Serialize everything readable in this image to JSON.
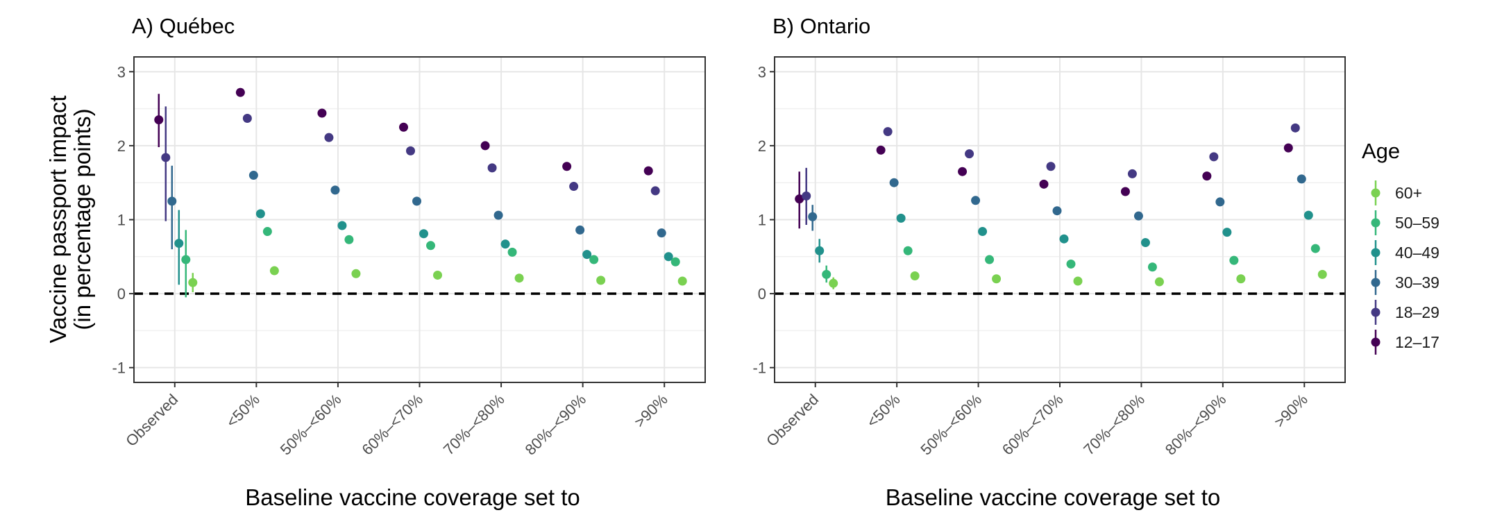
{
  "chart_data": {
    "type": "scatter",
    "subtype": "pointrange",
    "ylabel_lines": [
      "Vaccine passport impact",
      "(in percentage points)"
    ],
    "xlabel": "Baseline vaccine coverage set to",
    "ylim": [
      -1.2,
      3.2
    ],
    "yticks": [
      "-1",
      "0",
      "1",
      "2",
      "3"
    ],
    "ytick_values": [
      -1,
      0,
      1,
      2,
      3
    ],
    "reference_line": {
      "y": 0,
      "style": "dashed"
    },
    "grid": true,
    "categories": [
      "Observed",
      "<50%",
      "50%–<60%",
      "60%–<70%",
      "70%–<80%",
      "80%–<90%",
      ">90%"
    ],
    "legend": {
      "title": "Age",
      "placement": "right",
      "entries": [
        "60+",
        "50–59",
        "40–49",
        "30–39",
        "18–29",
        "12–17"
      ]
    },
    "series_colors": {
      "12–17": "#440154",
      "18–29": "#443983",
      "30–39": "#31688e",
      "40–49": "#21918c",
      "50–59": "#35b779",
      "60+": "#7ad151"
    },
    "panels": [
      {
        "title": "A) Québec",
        "series": [
          {
            "name": "12–17",
            "values": [
              2.35,
              2.72,
              2.44,
              2.25,
              2.0,
              1.72,
              1.66
            ],
            "observed_ci": [
              1.98,
              2.7
            ]
          },
          {
            "name": "18–29",
            "values": [
              1.84,
              2.37,
              2.11,
              1.93,
              1.7,
              1.45,
              1.39
            ],
            "observed_ci": [
              0.98,
              2.53
            ]
          },
          {
            "name": "30–39",
            "values": [
              1.25,
              1.6,
              1.4,
              1.25,
              1.06,
              0.86,
              0.82
            ],
            "observed_ci": [
              0.6,
              1.73
            ]
          },
          {
            "name": "40–49",
            "values": [
              0.68,
              1.08,
              0.92,
              0.81,
              0.67,
              0.53,
              0.5
            ],
            "observed_ci": [
              0.12,
              1.13
            ]
          },
          {
            "name": "50–59",
            "values": [
              0.46,
              0.84,
              0.73,
              0.65,
              0.56,
              0.46,
              0.43
            ],
            "observed_ci": [
              -0.05,
              0.86
            ]
          },
          {
            "name": "60+",
            "values": [
              0.15,
              0.31,
              0.27,
              0.25,
              0.21,
              0.18,
              0.17
            ],
            "observed_ci": [
              0.02,
              0.28
            ]
          }
        ]
      },
      {
        "title": "B) Ontario",
        "series": [
          {
            "name": "12–17",
            "values": [
              1.28,
              1.94,
              1.65,
              1.48,
              1.38,
              1.59,
              1.97
            ],
            "observed_ci": [
              0.88,
              1.65
            ]
          },
          {
            "name": "18–29",
            "values": [
              1.32,
              2.19,
              1.89,
              1.72,
              1.62,
              1.85,
              2.24
            ],
            "observed_ci": [
              0.93,
              1.7
            ]
          },
          {
            "name": "30–39",
            "values": [
              1.04,
              1.5,
              1.26,
              1.12,
              1.05,
              1.24,
              1.55
            ],
            "observed_ci": [
              0.85,
              1.2
            ]
          },
          {
            "name": "40–49",
            "values": [
              0.58,
              1.02,
              0.84,
              0.74,
              0.69,
              0.83,
              1.06
            ],
            "observed_ci": [
              0.42,
              0.74
            ]
          },
          {
            "name": "50–59",
            "values": [
              0.26,
              0.58,
              0.46,
              0.4,
              0.36,
              0.45,
              0.61
            ],
            "observed_ci": [
              0.15,
              0.38
            ]
          },
          {
            "name": "60+",
            "values": [
              0.14,
              0.24,
              0.2,
              0.17,
              0.16,
              0.2,
              0.26
            ],
            "observed_ci": [
              0.06,
              0.22
            ]
          }
        ]
      }
    ]
  }
}
